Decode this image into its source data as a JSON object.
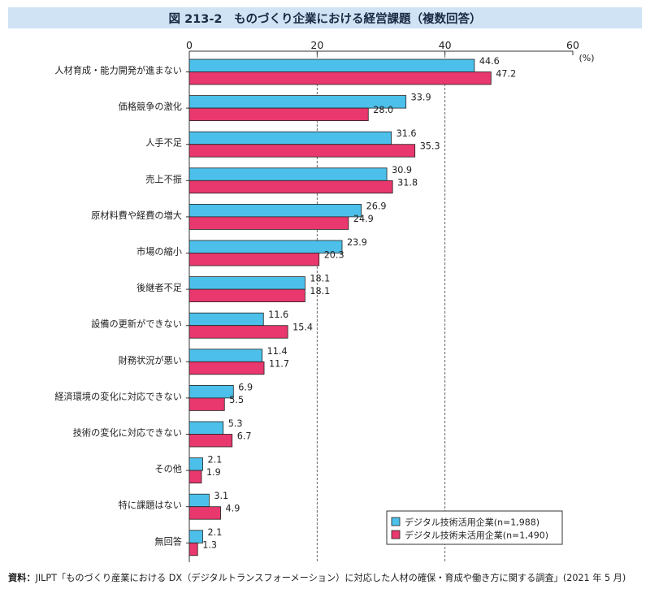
{
  "title": "図 213-2　ものづくり企業における経営課題（複数回答）",
  "source_label": "資料：",
  "source_text": "JILPT「ものづくり産業における DX（デジタルトランスフォーメーション）に対応した人材の確保・育成や働き方に関する調査」(2021 年 5 月)",
  "chart_data": {
    "type": "bar",
    "orientation": "horizontal",
    "unit_label": "(%)",
    "xlim": [
      0,
      60
    ],
    "ticks": [
      0,
      20,
      40,
      60
    ],
    "grid": "vertical dashed lines at 20 and 40",
    "legend_position": "bottom-right",
    "categories": [
      "人材育成・能力開発が進まない",
      "価格競争の激化",
      "人手不足",
      "売上不振",
      "原材料費や経費の増大",
      "市場の縮小",
      "後継者不足",
      "設備の更新ができない",
      "財務状況が悪い",
      "経済環境の変化に対応できない",
      "技術の変化に対応できない",
      "その他",
      "特に課題はない",
      "無回答"
    ],
    "series": [
      {
        "name": "デジタル技術活用企業(n=1,988)",
        "color": "#4cc0ea",
        "values": [
          44.6,
          33.9,
          31.6,
          30.9,
          26.9,
          23.9,
          18.1,
          11.6,
          11.4,
          6.9,
          5.3,
          2.1,
          3.1,
          2.1
        ]
      },
      {
        "name": "デジタル技術未活用企業(n=1,490)",
        "color": "#e8386d",
        "values": [
          47.2,
          28.0,
          35.3,
          31.8,
          24.9,
          20.3,
          18.1,
          15.4,
          11.7,
          5.5,
          6.7,
          1.9,
          4.9,
          1.3
        ]
      }
    ]
  }
}
